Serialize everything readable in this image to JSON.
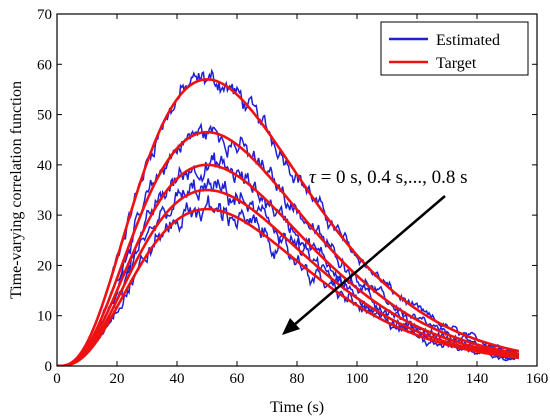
{
  "chart_data": {
    "type": "line",
    "title": "",
    "xlabel": "Time (s)",
    "ylabel": "Time-varying correlation function",
    "xlim": [
      0,
      160
    ],
    "ylim": [
      0,
      70
    ],
    "xticks": [
      0,
      20,
      40,
      60,
      80,
      100,
      120,
      140,
      160
    ],
    "yticks": [
      0,
      10,
      20,
      30,
      40,
      50,
      60,
      70
    ],
    "grid": false,
    "legend": {
      "placement": "top-right"
    },
    "annotation": {
      "symbol": "τ",
      "text": " = 0 s, 0.4 s,..., 0.8 s"
    },
    "colors": {
      "estimated": "#1f1fd6",
      "target": "#ee1111"
    },
    "x_end": 154,
    "target_peaks": [
      57,
      46.5,
      40,
      35,
      31.2
    ],
    "series": [
      {
        "name": "Estimated",
        "role": "estimated"
      },
      {
        "name": "Target",
        "role": "target"
      }
    ]
  }
}
